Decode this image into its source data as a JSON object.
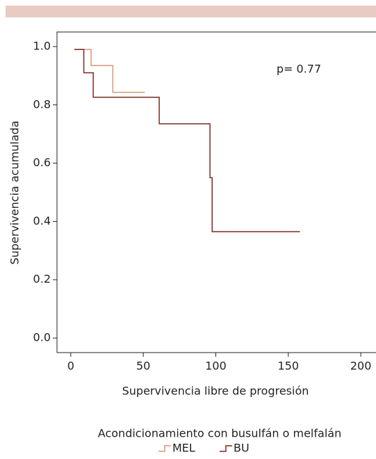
{
  "chart_data": {
    "type": "step",
    "xlabel": "Supervivencia libre de progresión",
    "ylabel": "Supervivencia acumulada",
    "annotation": "p= 0.77",
    "legend_title": "Acondicionamiento con busulfán o melfalán",
    "series": [
      {
        "name": "MEL",
        "color": "#d9957a",
        "x": [
          2.5,
          14,
          29,
          51
        ],
        "values": [
          0.99,
          0.935,
          0.843,
          0.843
        ]
      },
      {
        "name": "BU",
        "color": "#7a2a1c",
        "x": [
          2.5,
          9,
          15.5,
          61,
          96,
          97.5,
          158
        ],
        "values": [
          0.99,
          0.91,
          0.826,
          0.735,
          0.55,
          0.365,
          0.365
        ]
      }
    ],
    "xlim": [
      -9.5,
      210
    ],
    "xticks": [
      0,
      50,
      100,
      150,
      200
    ],
    "ylim": [
      -0.05,
      1.05
    ],
    "yticks": [
      {
        "value": 0,
        "label": "0.0"
      },
      0.2,
      0.4,
      0.6,
      0.8,
      {
        "value": 1,
        "label": "1.0"
      }
    ]
  }
}
